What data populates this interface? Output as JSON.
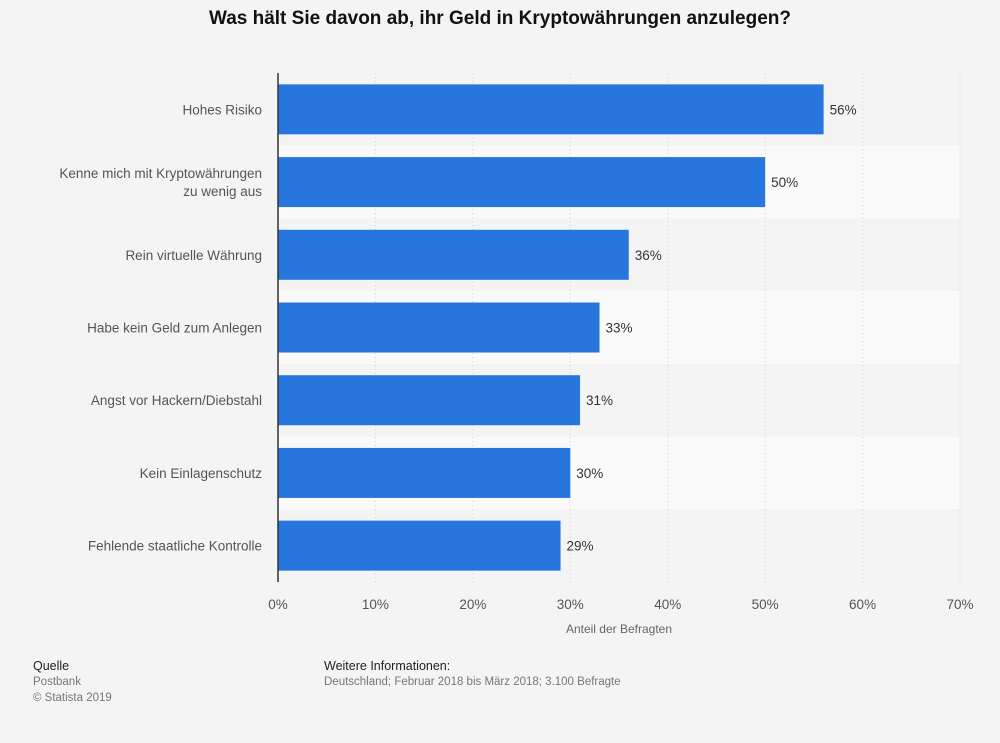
{
  "chart_data": {
    "type": "bar",
    "orientation": "horizontal",
    "title": "Was hält Sie davon ab, ihr Geld in Kryptowährungen anzulegen?",
    "xlabel": "Anteil der Befragten",
    "ylabel": "",
    "categories": [
      [
        "Hohes Risiko"
      ],
      [
        "Kenne mich mit Kryptowährungen",
        "zu wenig aus"
      ],
      [
        "Rein virtuelle Währung"
      ],
      [
        "Habe kein Geld zum Anlegen"
      ],
      [
        "Angst vor Hackern/Diebstahl"
      ],
      [
        "Kein Einlagenschutz"
      ],
      [
        "Fehlende staatliche Kontrolle"
      ]
    ],
    "values": [
      56,
      50,
      36,
      33,
      31,
      30,
      29
    ],
    "value_labels": [
      "56%",
      "50%",
      "36%",
      "33%",
      "31%",
      "30%",
      "29%"
    ],
    "xlim": [
      0,
      70
    ],
    "ticks": [
      0,
      10,
      20,
      30,
      40,
      50,
      60,
      70
    ],
    "tick_labels": [
      "0%",
      "10%",
      "20%",
      "30%",
      "40%",
      "50%",
      "60%",
      "70%"
    ],
    "grid": true,
    "bar_color": "#2776dd"
  },
  "footer": {
    "source_heading": "Quelle",
    "source_name": "Postbank",
    "copyright": "© Statista 2019",
    "info_heading": "Weitere Informationen:",
    "info_text": "Deutschland; Februar 2018 bis März 2018; 3.100 Befragte"
  }
}
